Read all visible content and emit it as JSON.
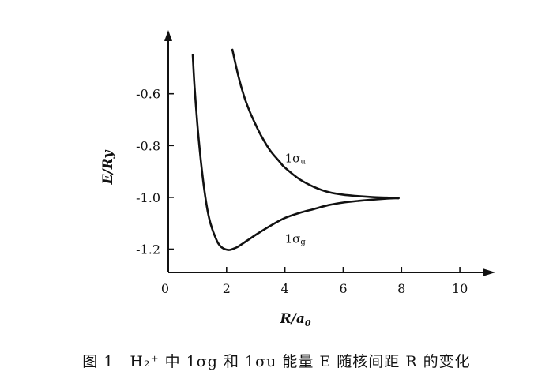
{
  "chart_data": {
    "type": "line",
    "xlabel": "R/a",
    "xlabel_sub": "0",
    "ylabel": "E/Ry",
    "xlim": [
      0,
      11
    ],
    "ylim": [
      -1.29,
      -0.36
    ],
    "x_ticks": [
      0,
      2,
      4,
      6,
      8,
      10
    ],
    "x_tick_labels": [
      "0",
      "2",
      "4",
      "6",
      "8",
      "10"
    ],
    "y_ticks": [
      -0.6,
      -0.8,
      -1.0,
      -1.2
    ],
    "y_tick_labels": [
      "-0.6",
      "-0.8",
      "-1.0",
      "-1.2"
    ],
    "grid": false,
    "series": [
      {
        "name": "1σg",
        "x": [
          0.84,
          0.9,
          1.0,
          1.1,
          1.2,
          1.3,
          1.4,
          1.5,
          1.6,
          1.7,
          1.8,
          1.9,
          2.0,
          2.1,
          2.2,
          2.4,
          2.6,
          2.8,
          3.0,
          3.5,
          4.0,
          4.5,
          5.0,
          5.5,
          6.0,
          6.5,
          7.0,
          7.5,
          7.9
        ],
        "y": [
          -0.45,
          -0.57,
          -0.72,
          -0.84,
          -0.94,
          -1.02,
          -1.08,
          -1.12,
          -1.15,
          -1.175,
          -1.19,
          -1.198,
          -1.202,
          -1.203,
          -1.2,
          -1.19,
          -1.175,
          -1.16,
          -1.145,
          -1.11,
          -1.08,
          -1.06,
          -1.045,
          -1.03,
          -1.02,
          -1.014,
          -1.009,
          -1.005,
          -1.003
        ]
      },
      {
        "name": "1σu",
        "x": [
          2.2,
          2.4,
          2.6,
          2.8,
          3.0,
          3.2,
          3.5,
          3.8,
          4.0,
          4.5,
          5.0,
          5.5,
          6.0,
          6.5,
          7.0,
          7.5,
          7.9
        ],
        "y": [
          -0.43,
          -0.53,
          -0.61,
          -0.67,
          -0.72,
          -0.765,
          -0.82,
          -0.86,
          -0.885,
          -0.93,
          -0.96,
          -0.98,
          -0.99,
          -0.995,
          -0.999,
          -1.001,
          -1.003
        ]
      }
    ],
    "series_labels": [
      {
        "main": "1σ",
        "sub": "g",
        "x": 4.0,
        "y": -1.16
      },
      {
        "main": "1σ",
        "sub": "u",
        "x": 4.0,
        "y": -0.85
      }
    ]
  },
  "caption": "图 1　H₂⁺ 中 1σg 和 1σu 能量 E 随核间距 R 的变化"
}
